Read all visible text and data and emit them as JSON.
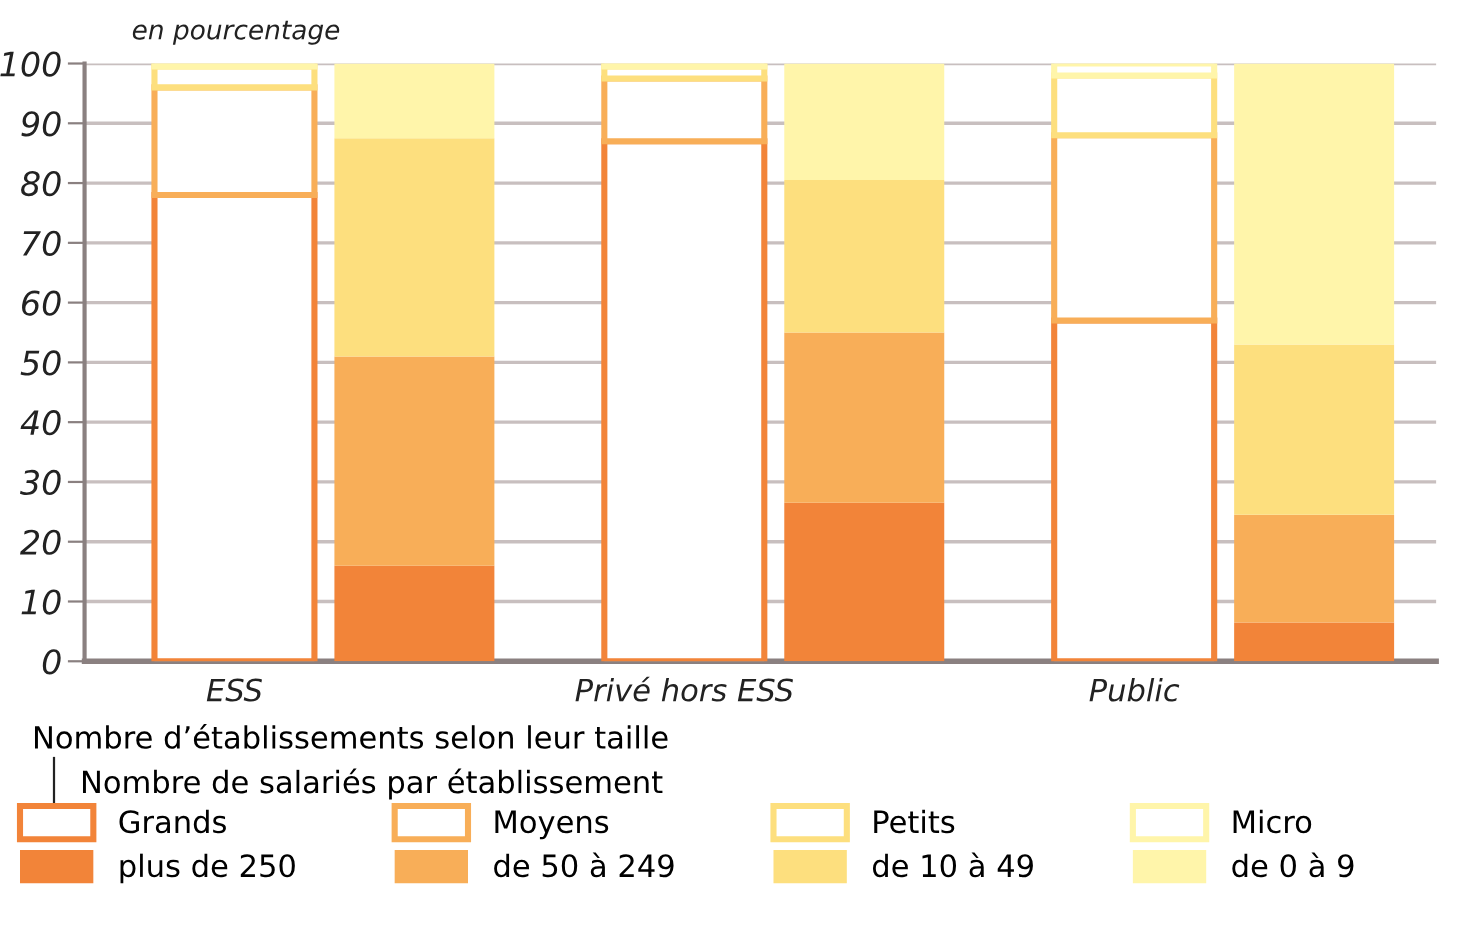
{
  "chart_data": {
    "type": "bar",
    "stacked": true,
    "ylabel": "en pourcentage",
    "categories": [
      "ESS",
      null,
      "Privé hors ESS",
      null,
      "Public",
      null
    ],
    "legend_title": "Nombre d’établissements selon leur taille",
    "annotations": [
      "Nombre de salariés par établissement"
    ],
    "series": [
      {
        "name": "Grands",
        "color": "#f28439",
        "values": [
          78,
          null,
          87,
          null,
          57,
          null
        ]
      },
      {
        "name": "Moyens",
        "color": "#f8ae58",
        "values": [
          18,
          null,
          10.5,
          null,
          31,
          null
        ]
      },
      {
        "name": "Petits",
        "color": "#fddf7e",
        "values": [
          3.5,
          null,
          2,
          null,
          10,
          null
        ]
      },
      {
        "name": "Micro",
        "color": "#fff5aa",
        "values": [
          0.5,
          null,
          0.5,
          null,
          2,
          null
        ]
      },
      {
        "name": "plus de 250",
        "color": "#f28439",
        "values": [
          null,
          16,
          null,
          26.5,
          null,
          6.5
        ]
      },
      {
        "name": "de 50 à 249",
        "color": "#f8ae58",
        "values": [
          null,
          35,
          null,
          28.5,
          null,
          18
        ]
      },
      {
        "name": "de 10 à 49",
        "color": "#fddf7e",
        "values": [
          null,
          36.5,
          null,
          25.5,
          null,
          28.5
        ]
      },
      {
        "name": "de 0 à 9",
        "color": "#fff5aa",
        "values": [
          null,
          12.5,
          null,
          19.5,
          null,
          47
        ]
      }
    ],
    "ylim": [
      0,
      100
    ],
    "yticks": [
      0,
      10,
      20,
      30,
      40,
      50,
      60,
      70,
      80,
      90,
      100
    ],
    "grid": "y",
    "legend": "bottom"
  }
}
